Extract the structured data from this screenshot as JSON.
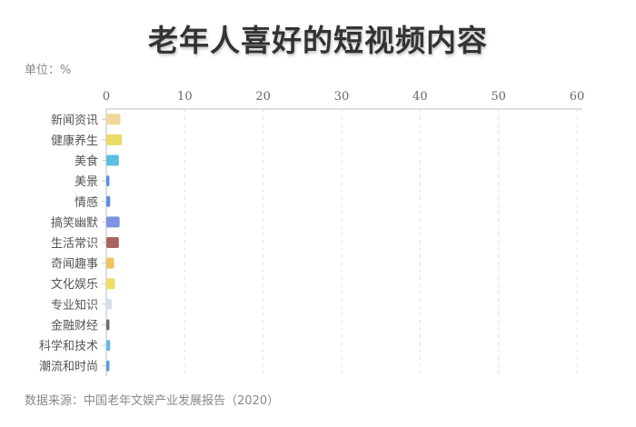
{
  "chart_data": {
    "type": "bar",
    "orientation": "horizontal",
    "title": "老年人喜好的短视频内容",
    "unit_label": "单位：%",
    "source": "数据来源：中国老年文娱产业发展报告（2020）",
    "categories": [
      "新闻资讯",
      "健康养生",
      "美食",
      "美景",
      "情感",
      "搞笑幽默",
      "生活常识",
      "奇闻趣事",
      "文化娱乐",
      "专业知识",
      "金融财经",
      "科学和技术",
      "潮流和时尚"
    ],
    "values": [
      1.8,
      2.0,
      1.6,
      0.4,
      0.5,
      1.7,
      1.6,
      1.0,
      1.1,
      0.7,
      0.4,
      0.5,
      0.4
    ],
    "colors": [
      "#f0d898",
      "#e8dc66",
      "#5bbfe0",
      "#5b8ee6",
      "#5b8ee6",
      "#7b93e0",
      "#a86464",
      "#f0c462",
      "#ece064",
      "#d6e0e8",
      "#6e6e6e",
      "#6ab4e6",
      "#5a9ae0"
    ],
    "xlim": [
      0,
      60
    ],
    "xticks": [
      0,
      10,
      20,
      30,
      40,
      50,
      60
    ],
    "axis_position": "top",
    "grid": "vertical dashed"
  }
}
